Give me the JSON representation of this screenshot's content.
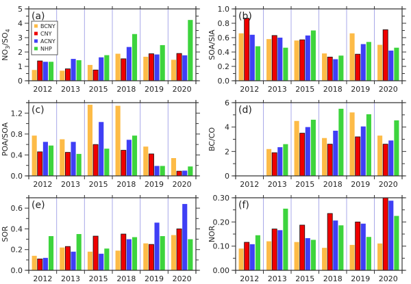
{
  "legend": {
    "entries": [
      {
        "label": "BCNY",
        "color": "#FDBB47"
      },
      {
        "label": "CNY",
        "color": "#EE0000"
      },
      {
        "label": "ACNY",
        "color": "#3F3FF5"
      },
      {
        "label": "NHP",
        "color": "#3DD43D"
      }
    ],
    "placement": "top-left of panel (a)"
  },
  "chart_data": [
    {
      "type": "bar",
      "panel_label": "(a)",
      "ylabel": "NO3/SO4",
      "categories": [
        "2012",
        "2013",
        "2015",
        "2018",
        "2019",
        "2020"
      ],
      "ylim": [
        0,
        5
      ],
      "yticks": [
        "0",
        "1",
        "2",
        "3",
        "4",
        "5"
      ],
      "series": [
        {
          "name": "BCNY",
          "values": [
            0.75,
            0.7,
            1.1,
            1.88,
            1.67,
            1.46
          ]
        },
        {
          "name": "CNY",
          "values": [
            1.38,
            0.83,
            0.75,
            1.53,
            1.88,
            1.9
          ]
        },
        {
          "name": "ACNY",
          "values": [
            1.32,
            1.52,
            1.63,
            2.35,
            1.83,
            1.77
          ]
        },
        {
          "name": "NHP",
          "values": [
            1.32,
            1.43,
            1.78,
            3.25,
            2.48,
            4.23
          ]
        }
      ]
    },
    {
      "type": "bar",
      "panel_label": "(b)",
      "ylabel": "SOA/SIA",
      "categories": [
        "2012",
        "2013",
        "2015",
        "2018",
        "2019",
        "2020"
      ],
      "ylim": [
        0,
        1.0
      ],
      "yticks": [
        "0.0",
        "0.2",
        "0.4",
        "0.6",
        "0.8",
        "1.0"
      ],
      "series": [
        {
          "name": "BCNY",
          "values": [
            0.66,
            0.58,
            0.56,
            0.38,
            0.66,
            0.5
          ]
        },
        {
          "name": "CNY",
          "values": [
            0.87,
            0.63,
            0.57,
            0.33,
            0.37,
            0.71
          ]
        },
        {
          "name": "ACNY",
          "values": [
            0.64,
            0.6,
            0.63,
            0.3,
            0.51,
            0.42
          ]
        },
        {
          "name": "NHP",
          "values": [
            0.48,
            0.46,
            0.7,
            0.35,
            0.54,
            0.46
          ]
        }
      ]
    },
    {
      "type": "bar",
      "panel_label": "(c)",
      "ylabel": "POA/SOA",
      "categories": [
        "2012",
        "2013",
        "2015",
        "2018",
        "2019",
        "2020"
      ],
      "ylim": [
        0,
        1.4
      ],
      "yticks": [
        "0.0",
        "0.4",
        "0.8",
        "1.2"
      ],
      "series": [
        {
          "name": "BCNY",
          "values": [
            0.77,
            0.7,
            1.36,
            1.34,
            0.56,
            0.34
          ]
        },
        {
          "name": "CNY",
          "values": [
            0.46,
            0.45,
            0.6,
            0.49,
            0.42,
            0.09
          ]
        },
        {
          "name": "ACNY",
          "values": [
            0.65,
            0.65,
            1.03,
            0.69,
            0.19,
            0.1
          ]
        },
        {
          "name": "NHP",
          "values": [
            0.58,
            0.42,
            0.52,
            0.77,
            0.19,
            0.18
          ]
        }
      ]
    },
    {
      "type": "bar",
      "panel_label": "(d)",
      "ylabel": "BC/CO",
      "categories": [
        "2012",
        "2013",
        "2015",
        "2018",
        "2019",
        "2020"
      ],
      "ylim": [
        0,
        6
      ],
      "yticks": [
        "0",
        "2",
        "4",
        "6"
      ],
      "series": [
        {
          "name": "BCNY",
          "values": [
            null,
            2.2,
            4.5,
            3.1,
            5.2,
            3.3
          ]
        },
        {
          "name": "CNY",
          "values": [
            null,
            1.9,
            3.5,
            2.6,
            3.2,
            2.6
          ]
        },
        {
          "name": "ACNY",
          "values": [
            null,
            2.35,
            4.0,
            3.7,
            4.05,
            2.9
          ]
        },
        {
          "name": "NHP",
          "values": [
            null,
            2.6,
            4.6,
            5.5,
            5.05,
            4.55
          ]
        }
      ]
    },
    {
      "type": "bar",
      "panel_label": "(e)",
      "ylabel": "SOR",
      "categories": [
        "2012",
        "2013",
        "2015",
        "2018",
        "2019",
        "2020"
      ],
      "ylim": [
        0,
        0.7
      ],
      "yticks": [
        "0.0",
        "0.2",
        "0.4",
        "0.6"
      ],
      "series": [
        {
          "name": "BCNY",
          "values": [
            0.14,
            0.22,
            0.18,
            0.19,
            0.26,
            0.34
          ]
        },
        {
          "name": "CNY",
          "values": [
            0.11,
            0.23,
            0.33,
            0.35,
            0.25,
            0.4
          ]
        },
        {
          "name": "ACNY",
          "values": [
            0.12,
            0.18,
            0.16,
            0.3,
            0.46,
            0.64
          ]
        },
        {
          "name": "NHP",
          "values": [
            0.33,
            0.35,
            0.21,
            0.32,
            0.33,
            0.3
          ]
        }
      ]
    },
    {
      "type": "bar",
      "panel_label": "(f)",
      "ylabel": "NOR",
      "categories": [
        "2012",
        "2013",
        "2015",
        "2018",
        "2019",
        "2020"
      ],
      "ylim": [
        0,
        0.3
      ],
      "yticks": [
        "0.00",
        "0.10",
        "0.20",
        "0.30"
      ],
      "series": [
        {
          "name": "BCNY",
          "values": [
            0.09,
            0.12,
            0.117,
            0.093,
            0.105,
            0.111
          ]
        },
        {
          "name": "CNY",
          "values": [
            0.116,
            0.171,
            0.187,
            0.235,
            0.2,
            0.3
          ]
        },
        {
          "name": "ACNY",
          "values": [
            0.108,
            0.166,
            0.133,
            0.206,
            0.193,
            0.288
          ]
        },
        {
          "name": "NHP",
          "values": [
            0.145,
            0.255,
            0.126,
            0.186,
            0.138,
            0.225
          ]
        }
      ]
    }
  ]
}
